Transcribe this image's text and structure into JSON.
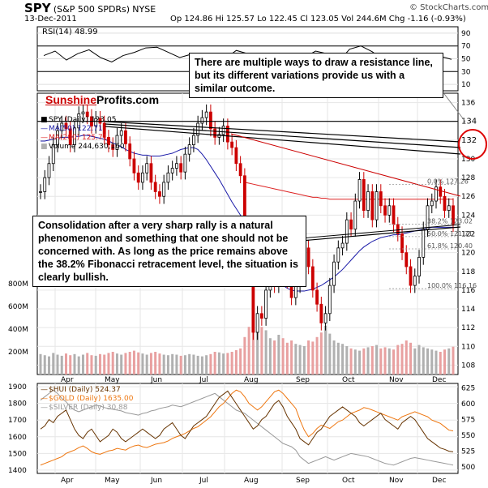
{
  "header": {
    "ticker": "SPY",
    "full_name": "(S&P 500 SPDRs)",
    "exchange": "NYSE",
    "date": "13-Dec-2011",
    "source": "© StockCharts.com",
    "ohlc": "Op 124.86  Hi 125.57  Lo 122.45  Cl 123.05  Vol 244.6M  Chg -1.16 (-0.93%)"
  },
  "brand": {
    "part1": "Sunshine",
    "part2": "Profits.com"
  },
  "annotations": {
    "top": "There are multiple ways to draw a resistance line, but its different variations provide us with a similar outcome.",
    "middle": "Consolidation after a very sharp rally is a natural phenomenon and something that one should not be concerned with. As long as the price remains above the 38.2% Fibonacci retracement level, the situation is clearly bullish."
  },
  "colors": {
    "price_up": "#000000",
    "price_down": "#cc0000",
    "ma50": "#1a1aa8",
    "ma200": "#dd2222",
    "volume": "#e8a0a0",
    "hui": "#663300",
    "gold": "#ee7711",
    "silver": "#999999",
    "highlight": "#dd0000"
  },
  "chart_data": [
    {
      "type": "line",
      "panel": "rsi",
      "legend": "RSI(14) 48.99",
      "yticks": [
        10,
        30,
        50,
        70,
        90
      ],
      "ylim": [
        0,
        100
      ],
      "x": [
        0,
        5,
        10,
        15,
        20,
        25,
        30,
        35,
        40,
        45,
        50,
        55,
        60,
        65,
        70,
        75,
        80,
        85,
        90,
        95,
        100,
        105,
        110,
        115,
        120,
        125,
        130,
        135,
        140,
        145,
        150,
        155,
        160,
        165,
        170,
        175,
        180
      ],
      "values": [
        55,
        62,
        48,
        58,
        64,
        52,
        45,
        55,
        60,
        67,
        68,
        60,
        52,
        57,
        48,
        42,
        50,
        63,
        58,
        48,
        40,
        35,
        28,
        52,
        62,
        58,
        45,
        65,
        70,
        61,
        48,
        55,
        42,
        52,
        58,
        54,
        49
      ]
    },
    {
      "type": "candlestick",
      "panel": "price",
      "legend": [
        "SPY (Daily) 123.05",
        "MA(50) 122.71",
        "MA(200) 125.71",
        "Volume 244,630,160"
      ],
      "ylim": [
        107,
        137
      ],
      "yticks": [
        108,
        110,
        112,
        114,
        116,
        118,
        120,
        122,
        124,
        126,
        128,
        130,
        132,
        134,
        136
      ],
      "highlight_levels": [
        134,
        132
      ],
      "vol_ticks": [
        "200M",
        "400M",
        "600M",
        "800M"
      ],
      "x_labels": [
        "Apr",
        "May",
        "Jun",
        "Jul",
        "Aug",
        "Sep",
        "Oct",
        "Nov",
        "Dec"
      ],
      "fibonacci": [
        {
          "label": "0.0% 127.26",
          "value": 127.26
        },
        {
          "label": "38.2% 123.02",
          "value": 123.02
        },
        {
          "label": "50.0% 121.71",
          "value": 121.71
        },
        {
          "label": "61.8% 120.40",
          "value": 120.4
        },
        {
          "label": "100.0% 116.16",
          "value": 116.16
        }
      ],
      "close": [
        126.5,
        128.0,
        129.5,
        131.5,
        133.0,
        133.8,
        133.2,
        131.5,
        133.3,
        134.8,
        135.0,
        134.5,
        133.5,
        134.3,
        133.8,
        132.3,
        131.5,
        131.0,
        132.5,
        133.0,
        131.6,
        130.0,
        128.5,
        127.5,
        128.5,
        129.5,
        127.5,
        126.5,
        126.0,
        127.5,
        128.5,
        129.0,
        129.5,
        128.6,
        130.5,
        131.5,
        132.5,
        133.8,
        134.4,
        135.0,
        133.2,
        132.3,
        132.6,
        133.5,
        131.8,
        131.2,
        129.5,
        128.2,
        120.0,
        118.0,
        111.5,
        113.5,
        113.0,
        116.0,
        117.5,
        116.5,
        119.0,
        117.5,
        117.0,
        115.2,
        116.5,
        119.0,
        120.5,
        118.5,
        116.0,
        114.5,
        112.5,
        113.5,
        116.5,
        119.0,
        120.5,
        121.0,
        123.5,
        122.5,
        125.5,
        127.8,
        124.5,
        126.5,
        123.5,
        126.5,
        125.0,
        124.0,
        125.0,
        123.0,
        122.0,
        120.0,
        118.5,
        116.5,
        117.5,
        119.5,
        122.5,
        125.0,
        125.5,
        127.0,
        126.0,
        124.5,
        125.0,
        123.0
      ],
      "ma50": [
        131.9,
        131.9,
        132.0,
        132.1,
        132.2,
        132.3,
        132.3,
        132.3,
        132.4,
        132.4,
        132.5,
        132.5,
        132.4,
        132.3,
        132.2,
        132.1,
        131.9,
        131.7,
        131.5,
        131.3,
        131.0,
        130.8,
        130.6,
        130.5,
        130.4,
        130.4,
        130.3,
        130.3,
        130.3,
        130.4,
        130.5,
        130.6,
        130.8,
        131.0,
        131.1,
        131.2,
        131.2,
        131.0,
        130.5,
        129.9,
        129.2,
        128.5,
        127.8,
        127.0,
        126.2,
        125.4,
        124.7,
        124.0,
        123.2,
        122.3,
        121.5,
        120.7,
        119.9,
        119.1,
        118.3,
        117.6,
        116.9,
        116.5,
        116.2,
        116.0,
        115.9,
        115.9,
        115.9,
        116.0,
        116.1,
        116.3,
        116.5,
        116.8,
        117.1,
        117.4,
        117.8,
        118.2,
        118.7,
        119.2,
        119.7,
        120.2,
        120.6,
        120.9,
        121.2,
        121.4,
        121.6,
        121.7,
        121.8,
        121.9,
        121.9,
        122.0,
        122.1,
        122.2,
        122.3,
        122.4,
        122.5,
        122.6,
        122.7,
        122.7,
        122.7,
        122.7,
        122.7,
        122.7
      ],
      "ma200": [
        null,
        null,
        null,
        null,
        null,
        null,
        null,
        null,
        null,
        null,
        null,
        null,
        null,
        null,
        null,
        null,
        null,
        null,
        null,
        null,
        null,
        null,
        null,
        null,
        null,
        null,
        null,
        null,
        null,
        null,
        null,
        null,
        null,
        null,
        null,
        null,
        null,
        null,
        null,
        null,
        null,
        null,
        null,
        null,
        null,
        null,
        null,
        null,
        127.5,
        127.4,
        127.3,
        127.2,
        127.1,
        127.0,
        126.9,
        126.8,
        126.7,
        126.6,
        126.5,
        126.4,
        126.3,
        126.2,
        126.1,
        126.0,
        125.9,
        125.9,
        125.8,
        125.8,
        125.7,
        125.7,
        125.7,
        125.7,
        125.7,
        125.7,
        125.7,
        125.7,
        125.7,
        125.7,
        125.7,
        125.7,
        125.7,
        125.7,
        125.7,
        125.7,
        125.7,
        125.7,
        125.7,
        125.7,
        125.7,
        125.7,
        125.7,
        125.7,
        125.7,
        125.7,
        125.7,
        125.7,
        125.7,
        125.7
      ],
      "volume_m": [
        180,
        170,
        160,
        190,
        175,
        165,
        185,
        170,
        180,
        160,
        175,
        190,
        170,
        165,
        180,
        175,
        190,
        200,
        185,
        175,
        190,
        200,
        210,
        195,
        185,
        175,
        190,
        200,
        185,
        175,
        170,
        180,
        175,
        165,
        170,
        180,
        175,
        165,
        160,
        170,
        180,
        200,
        195,
        185,
        190,
        200,
        215,
        230,
        330,
        420,
        560,
        470,
        420,
        390,
        320,
        300,
        350,
        320,
        280,
        300,
        270,
        260,
        250,
        300,
        290,
        330,
        370,
        430,
        360,
        300,
        280,
        270,
        250,
        230,
        220,
        210,
        230,
        240,
        250,
        260,
        230,
        240,
        230,
        220,
        260,
        270,
        300,
        280,
        230,
        260,
        240,
        230,
        220,
        210,
        200,
        220,
        230,
        245
      ]
    },
    {
      "type": "line",
      "panel": "metals",
      "legend": [
        "$HUI (Daily) 524.37",
        "$GOLD (Daily) 1635.00",
        "$SILVER (Daily) 30.88"
      ],
      "left_ticks": [
        1400,
        1500,
        1600,
        1700,
        1800,
        1900
      ],
      "right_ticks": [
        500,
        525,
        550,
        575,
        600,
        625
      ],
      "x_labels": [
        "Apr",
        "May",
        "Jun",
        "Jul",
        "Aug",
        "Sep",
        "Oct",
        "Nov",
        "Dec"
      ],
      "series": [
        {
          "name": "$HUI (Daily) 524.37",
          "values": [
            560,
            565,
            575,
            570,
            580,
            585,
            590,
            575,
            560,
            550,
            545,
            555,
            560,
            550,
            540,
            545,
            550,
            560,
            555,
            545,
            540,
            545,
            550,
            555,
            560,
            555,
            550,
            545,
            550,
            560,
            565,
            570,
            560,
            550,
            545,
            555,
            565,
            570,
            575,
            580,
            590,
            600,
            610,
            615,
            620,
            610,
            600,
            590,
            580,
            570,
            560,
            565,
            575,
            580,
            590,
            600,
            605,
            595,
            580,
            570,
            560,
            545,
            540,
            535,
            545,
            555,
            560,
            570,
            580,
            585,
            590,
            595,
            590,
            585,
            580,
            570,
            565,
            570,
            575,
            580,
            585,
            575,
            570,
            565,
            560,
            570,
            575,
            580,
            575,
            565,
            555,
            545,
            540,
            535,
            530,
            528,
            525,
            524
          ]
        },
        {
          "name": "$GOLD (Daily) 1635.00",
          "values": [
            1430,
            1440,
            1450,
            1460,
            1470,
            1480,
            1500,
            1510,
            1520,
            1535,
            1545,
            1530,
            1510,
            1500,
            1495,
            1505,
            1515,
            1520,
            1530,
            1525,
            1520,
            1535,
            1545,
            1550,
            1540,
            1535,
            1545,
            1555,
            1560,
            1565,
            1575,
            1590,
            1600,
            1610,
            1620,
            1635,
            1650,
            1660,
            1680,
            1700,
            1720,
            1750,
            1780,
            1800,
            1830,
            1860,
            1880,
            1870,
            1840,
            1800,
            1780,
            1760,
            1780,
            1810,
            1840,
            1870,
            1880,
            1860,
            1830,
            1800,
            1770,
            1700,
            1640,
            1600,
            1620,
            1650,
            1670,
            1660,
            1650,
            1670,
            1690,
            1700,
            1720,
            1740,
            1750,
            1760,
            1775,
            1770,
            1760,
            1750,
            1740,
            1730,
            1720,
            1710,
            1700,
            1720,
            1730,
            1740,
            1750,
            1740,
            1730,
            1720,
            1700,
            1690,
            1680,
            1660,
            1640,
            1635
          ]
        },
        {
          "name": "$SILVER (Daily) 30.88",
          "values": [
            1820,
            1840,
            1860,
            1880,
            1860,
            1830,
            1810,
            1780,
            1760,
            1750,
            1760,
            1770,
            1780,
            1790,
            1785,
            1775,
            1770,
            1765,
            1760,
            1755,
            1745,
            1740,
            1735,
            1730,
            1740,
            1745,
            1755,
            1760,
            1770,
            1775,
            1780,
            1790,
            1785,
            1780,
            1790,
            1800,
            1810,
            1820,
            1830,
            1840,
            1850,
            1860,
            1840,
            1820,
            1800,
            1780,
            1760,
            1750,
            1740,
            1720,
            1700,
            1680,
            1660,
            1640,
            1620,
            1600,
            1580,
            1560,
            1550,
            1540,
            1520,
            1480,
            1460,
            1440,
            1450,
            1460,
            1470,
            1480,
            1470,
            1460,
            1470,
            1480,
            1490,
            1500,
            1495,
            1490,
            1485,
            1480,
            1470,
            1460,
            1450,
            1440,
            1435,
            1430,
            1440,
            1450,
            1460,
            1470,
            1475,
            1470,
            1465,
            1460,
            1455,
            1450,
            1445,
            1440,
            1435,
            1430
          ]
        }
      ]
    }
  ]
}
